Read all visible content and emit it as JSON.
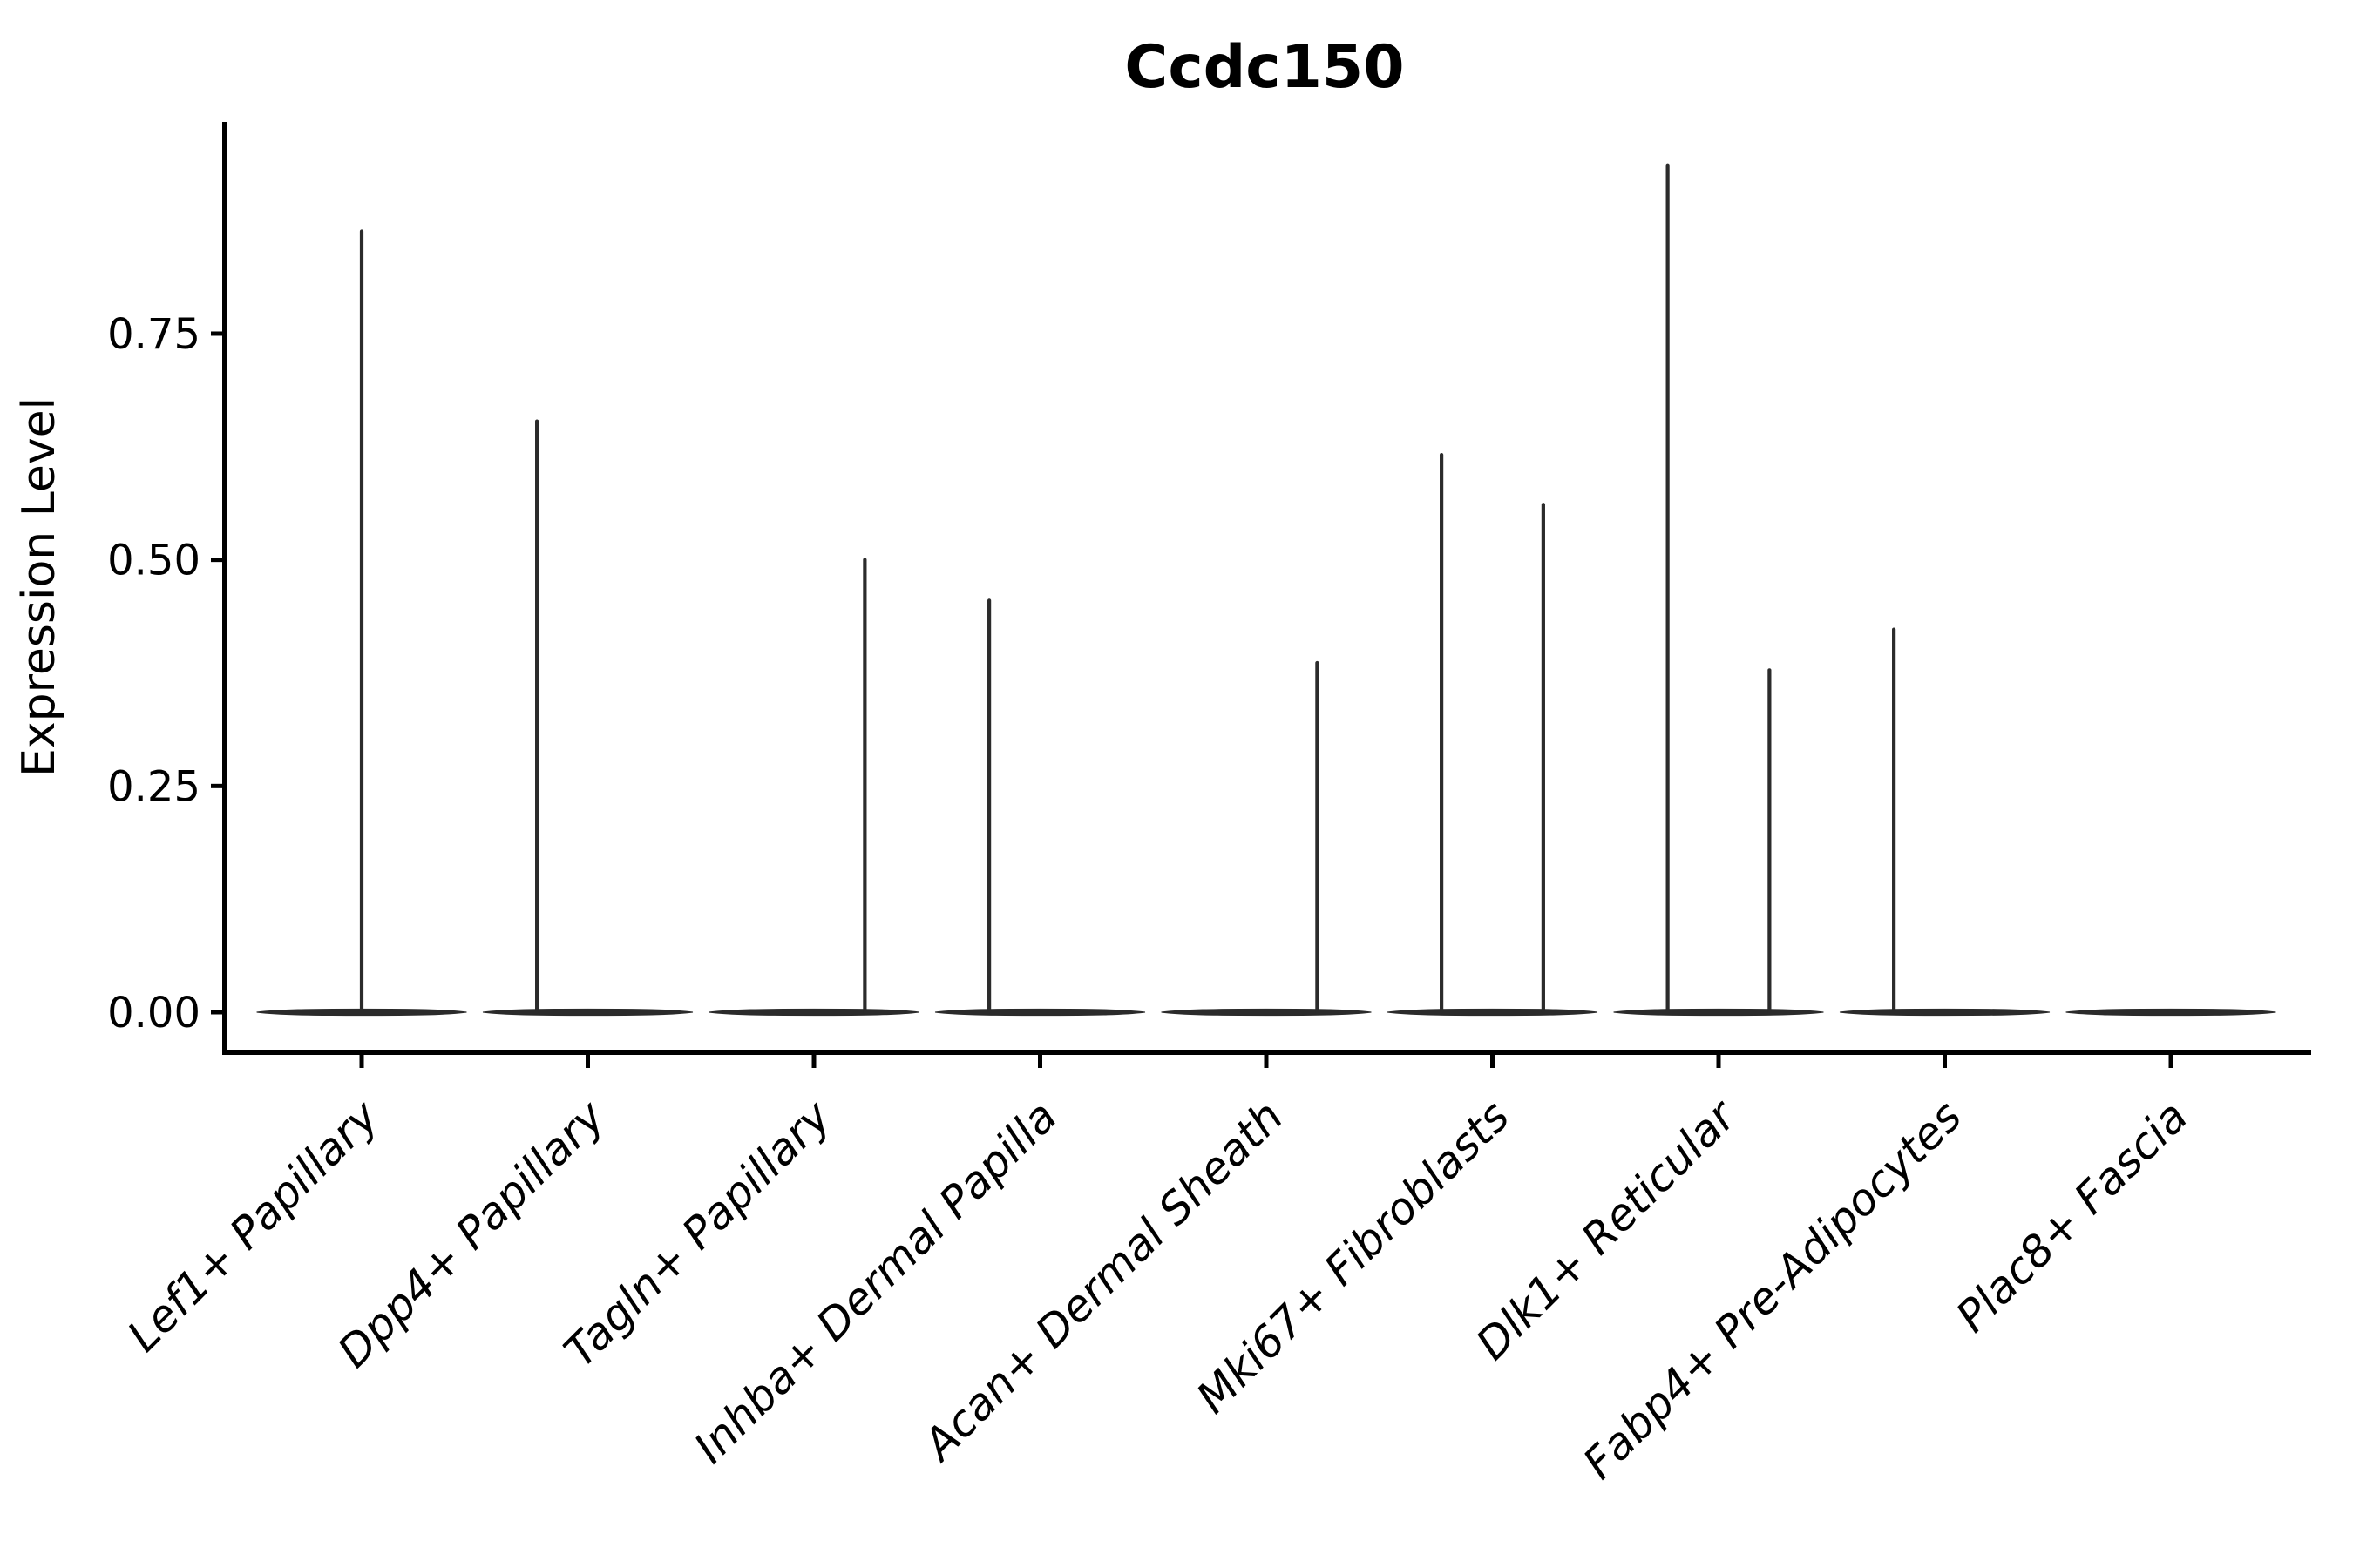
{
  "title": "Ccdc150",
  "chart_data": {
    "type": "violin",
    "title": "Ccdc150",
    "xlabel": "",
    "ylabel": "Expression Level",
    "grid": false,
    "legend": false,
    "ylim": [
      -0.045,
      0.985
    ],
    "y_ticks": [
      {
        "label": "0.00",
        "value": 0.0
      },
      {
        "label": "0.25",
        "value": 0.25
      },
      {
        "label": "0.50",
        "value": 0.5
      },
      {
        "label": "0.75",
        "value": 0.75
      }
    ],
    "categories": [
      "Lef1+ Papillary",
      "Dpp4+ Papillary",
      "Tagln+ Papillary",
      "Inhba+ Dermal Papilla",
      "Acan+ Dermal Sheath",
      "Mki67+ Fibroblasts",
      "Dlk1+ Reticular",
      "Fabp4+ Pre-Adipocytes",
      "Plac8+ Fascia"
    ],
    "violins": [
      {
        "category": "Lef1+ Papillary",
        "baseline_value": 0,
        "spikes": [
          {
            "max": 0.865,
            "offset_frac": 0.0
          }
        ]
      },
      {
        "category": "Dpp4+ Papillary",
        "baseline_value": 0,
        "spikes": [
          {
            "max": 0.655,
            "offset_frac": -0.225
          }
        ]
      },
      {
        "category": "Tagln+ Papillary",
        "baseline_value": 0,
        "spikes": [
          {
            "max": 0.502,
            "offset_frac": 0.225
          }
        ]
      },
      {
        "category": "Inhba+ Dermal Papilla",
        "baseline_value": 0,
        "spikes": [
          {
            "max": 0.457,
            "offset_frac": -0.225
          }
        ]
      },
      {
        "category": "Acan+ Dermal Sheath",
        "baseline_value": 0,
        "spikes": [
          {
            "max": 0.388,
            "offset_frac": 0.225
          }
        ]
      },
      {
        "category": "Mki67+ Fibroblasts",
        "baseline_value": 0,
        "spikes": [
          {
            "max": 0.618,
            "offset_frac": -0.225
          },
          {
            "max": 0.563,
            "offset_frac": 0.225
          }
        ]
      },
      {
        "category": "Dlk1+ Reticular",
        "baseline_value": 0,
        "spikes": [
          {
            "max": 0.938,
            "offset_frac": -0.225
          },
          {
            "max": 0.38,
            "offset_frac": 0.225
          }
        ]
      },
      {
        "category": "Fabp4+ Pre-Adipocytes",
        "baseline_value": 0,
        "spikes": [
          {
            "max": 0.425,
            "offset_frac": -0.225
          }
        ]
      },
      {
        "category": "Plac8+ Fascia",
        "baseline_value": 0,
        "spikes": []
      }
    ]
  },
  "colors": {
    "background": "#ffffff",
    "axis": "#000000",
    "text": "#000000",
    "violin": "#2b2b2b"
  }
}
